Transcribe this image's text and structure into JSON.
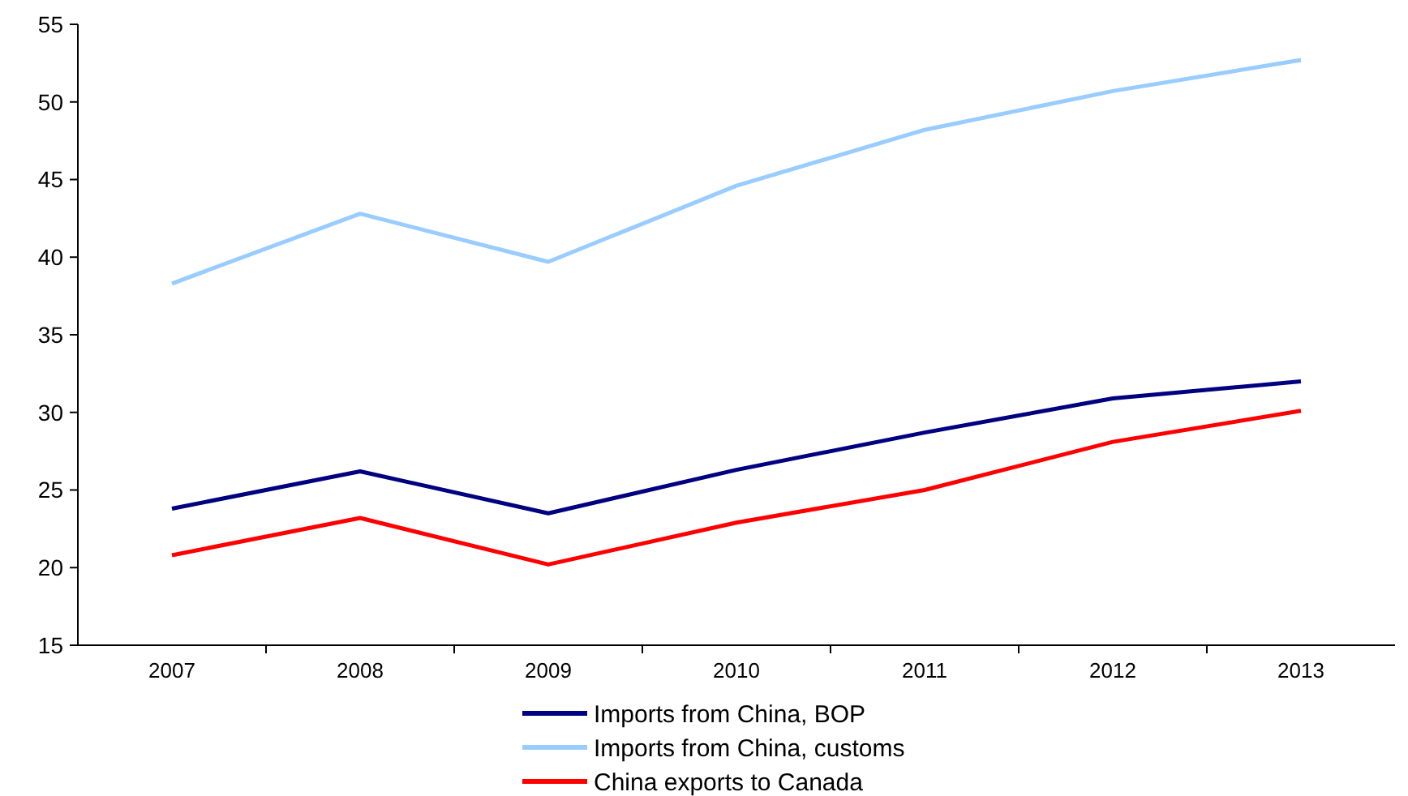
{
  "chart_data": {
    "type": "line",
    "categories": [
      "2007",
      "2008",
      "2009",
      "2010",
      "2011",
      "2012",
      "2013"
    ],
    "series": [
      {
        "name": "Imports from China, BOP",
        "color": "#000080",
        "values": [
          23.8,
          26.2,
          23.5,
          26.3,
          28.7,
          30.9,
          32.0
        ]
      },
      {
        "name": "Imports from China, customs",
        "color": "#99ccff",
        "values": [
          38.3,
          42.8,
          39.7,
          44.6,
          48.2,
          50.7,
          52.7
        ]
      },
      {
        "name": "China exports to Canada",
        "color": "#ff0000",
        "values": [
          20.8,
          23.2,
          20.2,
          22.9,
          25.0,
          28.1,
          30.1
        ]
      }
    ],
    "ylim": [
      15,
      55
    ],
    "yticks": [
      15,
      20,
      25,
      30,
      35,
      40,
      45,
      50,
      55
    ],
    "grid": false,
    "legend": "bottom",
    "marker": "none",
    "line_style": "solid"
  }
}
